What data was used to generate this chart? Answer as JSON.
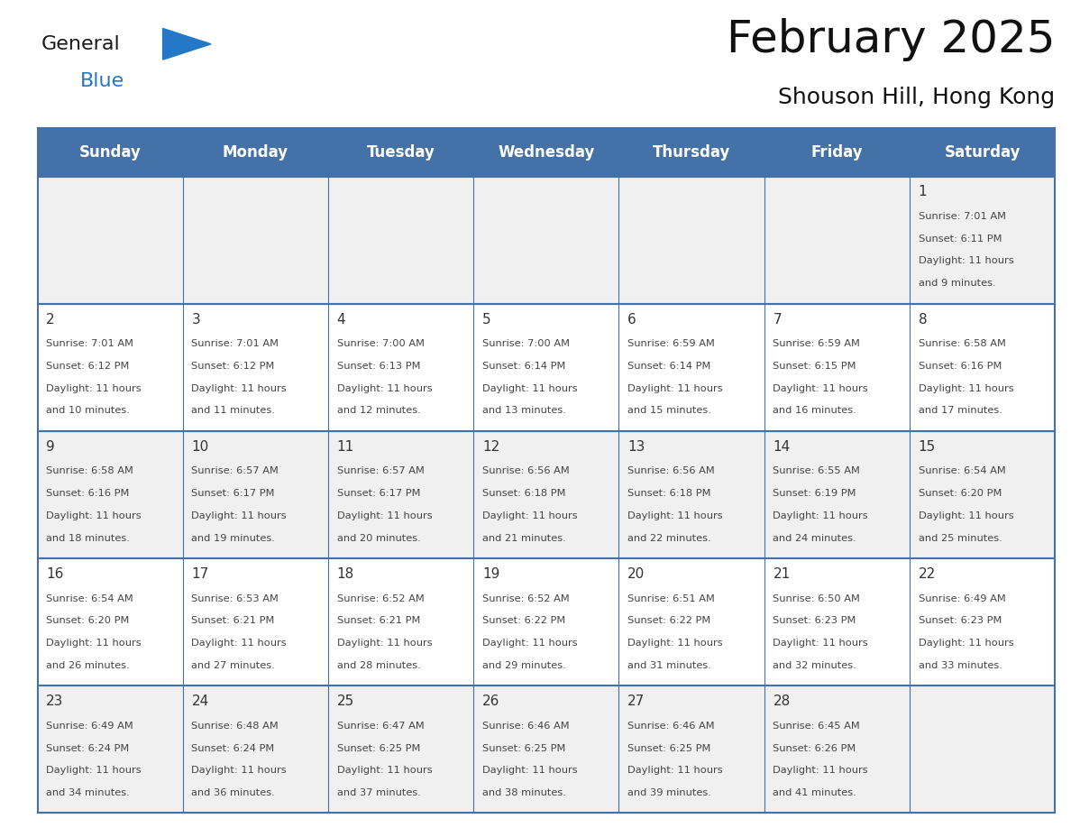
{
  "title": "February 2025",
  "subtitle": "Shouson Hill, Hong Kong",
  "days_of_week": [
    "Sunday",
    "Monday",
    "Tuesday",
    "Wednesday",
    "Thursday",
    "Friday",
    "Saturday"
  ],
  "header_bg": "#4472a8",
  "header_text": "#ffffff",
  "cell_bg_light": "#f0f0f0",
  "cell_bg_white": "#ffffff",
  "border_color": "#4472a8",
  "text_color": "#444444",
  "day_num_color": "#333333",
  "logo_general_color": "#1a1a1a",
  "logo_blue_color": "#2577c8",
  "calendar": [
    [
      null,
      null,
      null,
      null,
      null,
      null,
      1
    ],
    [
      2,
      3,
      4,
      5,
      6,
      7,
      8
    ],
    [
      9,
      10,
      11,
      12,
      13,
      14,
      15
    ],
    [
      16,
      17,
      18,
      19,
      20,
      21,
      22
    ],
    [
      23,
      24,
      25,
      26,
      27,
      28,
      null
    ]
  ],
  "cell_data": {
    "1": {
      "sunrise": "7:01 AM",
      "sunset": "6:11 PM",
      "dl1": "Daylight: 11 hours",
      "dl2": "and 9 minutes."
    },
    "2": {
      "sunrise": "7:01 AM",
      "sunset": "6:12 PM",
      "dl1": "Daylight: 11 hours",
      "dl2": "and 10 minutes."
    },
    "3": {
      "sunrise": "7:01 AM",
      "sunset": "6:12 PM",
      "dl1": "Daylight: 11 hours",
      "dl2": "and 11 minutes."
    },
    "4": {
      "sunrise": "7:00 AM",
      "sunset": "6:13 PM",
      "dl1": "Daylight: 11 hours",
      "dl2": "and 12 minutes."
    },
    "5": {
      "sunrise": "7:00 AM",
      "sunset": "6:14 PM",
      "dl1": "Daylight: 11 hours",
      "dl2": "and 13 minutes."
    },
    "6": {
      "sunrise": "6:59 AM",
      "sunset": "6:14 PM",
      "dl1": "Daylight: 11 hours",
      "dl2": "and 15 minutes."
    },
    "7": {
      "sunrise": "6:59 AM",
      "sunset": "6:15 PM",
      "dl1": "Daylight: 11 hours",
      "dl2": "and 16 minutes."
    },
    "8": {
      "sunrise": "6:58 AM",
      "sunset": "6:16 PM",
      "dl1": "Daylight: 11 hours",
      "dl2": "and 17 minutes."
    },
    "9": {
      "sunrise": "6:58 AM",
      "sunset": "6:16 PM",
      "dl1": "Daylight: 11 hours",
      "dl2": "and 18 minutes."
    },
    "10": {
      "sunrise": "6:57 AM",
      "sunset": "6:17 PM",
      "dl1": "Daylight: 11 hours",
      "dl2": "and 19 minutes."
    },
    "11": {
      "sunrise": "6:57 AM",
      "sunset": "6:17 PM",
      "dl1": "Daylight: 11 hours",
      "dl2": "and 20 minutes."
    },
    "12": {
      "sunrise": "6:56 AM",
      "sunset": "6:18 PM",
      "dl1": "Daylight: 11 hours",
      "dl2": "and 21 minutes."
    },
    "13": {
      "sunrise": "6:56 AM",
      "sunset": "6:18 PM",
      "dl1": "Daylight: 11 hours",
      "dl2": "and 22 minutes."
    },
    "14": {
      "sunrise": "6:55 AM",
      "sunset": "6:19 PM",
      "dl1": "Daylight: 11 hours",
      "dl2": "and 24 minutes."
    },
    "15": {
      "sunrise": "6:54 AM",
      "sunset": "6:20 PM",
      "dl1": "Daylight: 11 hours",
      "dl2": "and 25 minutes."
    },
    "16": {
      "sunrise": "6:54 AM",
      "sunset": "6:20 PM",
      "dl1": "Daylight: 11 hours",
      "dl2": "and 26 minutes."
    },
    "17": {
      "sunrise": "6:53 AM",
      "sunset": "6:21 PM",
      "dl1": "Daylight: 11 hours",
      "dl2": "and 27 minutes."
    },
    "18": {
      "sunrise": "6:52 AM",
      "sunset": "6:21 PM",
      "dl1": "Daylight: 11 hours",
      "dl2": "and 28 minutes."
    },
    "19": {
      "sunrise": "6:52 AM",
      "sunset": "6:22 PM",
      "dl1": "Daylight: 11 hours",
      "dl2": "and 29 minutes."
    },
    "20": {
      "sunrise": "6:51 AM",
      "sunset": "6:22 PM",
      "dl1": "Daylight: 11 hours",
      "dl2": "and 31 minutes."
    },
    "21": {
      "sunrise": "6:50 AM",
      "sunset": "6:23 PM",
      "dl1": "Daylight: 11 hours",
      "dl2": "and 32 minutes."
    },
    "22": {
      "sunrise": "6:49 AM",
      "sunset": "6:23 PM",
      "dl1": "Daylight: 11 hours",
      "dl2": "and 33 minutes."
    },
    "23": {
      "sunrise": "6:49 AM",
      "sunset": "6:24 PM",
      "dl1": "Daylight: 11 hours",
      "dl2": "and 34 minutes."
    },
    "24": {
      "sunrise": "6:48 AM",
      "sunset": "6:24 PM",
      "dl1": "Daylight: 11 hours",
      "dl2": "and 36 minutes."
    },
    "25": {
      "sunrise": "6:47 AM",
      "sunset": "6:25 PM",
      "dl1": "Daylight: 11 hours",
      "dl2": "and 37 minutes."
    },
    "26": {
      "sunrise": "6:46 AM",
      "sunset": "6:25 PM",
      "dl1": "Daylight: 11 hours",
      "dl2": "and 38 minutes."
    },
    "27": {
      "sunrise": "6:46 AM",
      "sunset": "6:25 PM",
      "dl1": "Daylight: 11 hours",
      "dl2": "and 39 minutes."
    },
    "28": {
      "sunrise": "6:45 AM",
      "sunset": "6:26 PM",
      "dl1": "Daylight: 11 hours",
      "dl2": "and 41 minutes."
    }
  }
}
